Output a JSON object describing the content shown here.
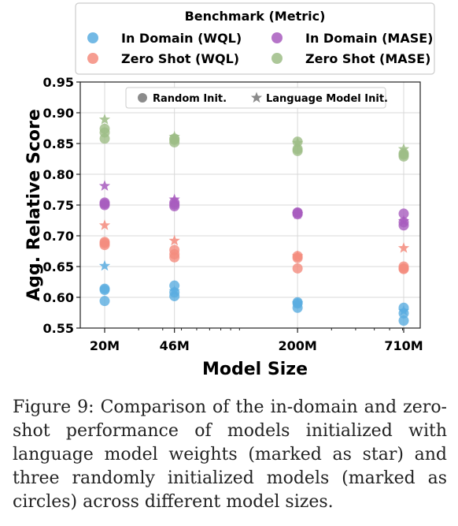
{
  "chart_data": {
    "type": "scatter",
    "xlabel": "Model Size",
    "ylabel": "Agg. Relative Score",
    "x_scale": "log",
    "x_ticks": [
      "20M",
      "46M",
      "200M",
      "710M"
    ],
    "ylim": [
      0.55,
      0.95
    ],
    "y_ticks": [
      "0.55",
      "0.60",
      "0.65",
      "0.70",
      "0.75",
      "0.80",
      "0.85",
      "0.90",
      "0.95"
    ],
    "grid": true,
    "legend_title": "Benchmark (Metric)",
    "marker_legend": [
      "Random Init.",
      "Language Model Init."
    ],
    "series": [
      {
        "name": "In Domain (WQL)",
        "color": "#5aade0",
        "random_init": {
          "20M": [
            0.594,
            0.612,
            0.614
          ],
          "46M": [
            0.602,
            0.608,
            0.619
          ],
          "200M": [
            0.583,
            0.59,
            0.592
          ],
          "710M": [
            0.562,
            0.574,
            0.583
          ]
        },
        "lm_init": {
          "20M": 0.651,
          "46M": 0.61,
          "200M": 0.59,
          "710M": 0.578
        }
      },
      {
        "name": "Zero Shot (WQL)",
        "color": "#f48c7e",
        "random_init": {
          "20M": [
            0.685,
            0.688,
            0.69
          ],
          "46M": [
            0.665,
            0.67,
            0.677
          ],
          "200M": [
            0.647,
            0.664,
            0.667
          ],
          "710M": [
            0.646,
            0.647,
            0.65
          ]
        },
        "lm_init": {
          "20M": 0.717,
          "46M": 0.692,
          "200M": 0.667,
          "710M": 0.68
        }
      },
      {
        "name": "In Domain (MASE)",
        "color": "#a85cbe",
        "random_init": {
          "20M": [
            0.75,
            0.752,
            0.754
          ],
          "46M": [
            0.748,
            0.751,
            0.754
          ],
          "200M": [
            0.735,
            0.737,
            0.738
          ],
          "710M": [
            0.717,
            0.722,
            0.736
          ]
        },
        "lm_init": {
          "20M": 0.781,
          "46M": 0.759,
          "200M": 0.735,
          "710M": 0.724
        }
      },
      {
        "name": "Zero Shot (MASE)",
        "color": "#9ebd86",
        "random_init": {
          "20M": [
            0.858,
            0.868,
            0.874
          ],
          "46M": [
            0.852,
            0.856,
            0.858
          ],
          "200M": [
            0.838,
            0.841,
            0.853
          ],
          "710M": [
            0.829,
            0.832,
            0.834
          ]
        },
        "lm_init": {
          "20M": 0.889,
          "46M": 0.861,
          "200M": 0.851,
          "710M": 0.841
        }
      }
    ]
  },
  "caption": "Figure 9:  Comparison of the in-domain and zero-shot performance of models initialized with language model weights (marked as star) and three randomly initialized models (marked as circles) across different model sizes."
}
